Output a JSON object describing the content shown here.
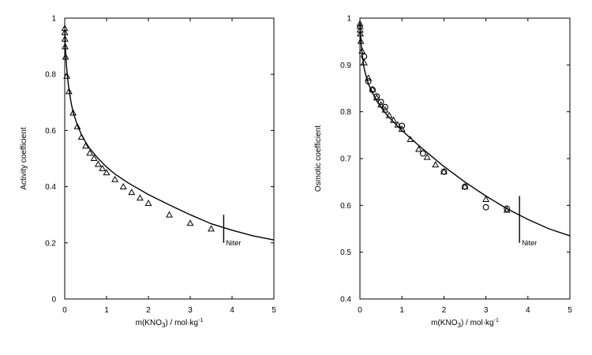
{
  "chart_data": [
    {
      "type": "scatter",
      "title": "",
      "xlabel": {
        "prefix": "m(KNO",
        "sub": "3",
        "suffix": ") / mol·kg",
        "sup": "-1"
      },
      "ylabel": "Activity coefficient",
      "xlim": [
        0,
        5
      ],
      "ylim": [
        0,
        1
      ],
      "xticks": [
        0,
        1,
        2,
        3,
        4,
        5
      ],
      "yticks": [
        0,
        0.2,
        0.4,
        0.6,
        0.8,
        1
      ],
      "xtick_labels": [
        "0",
        "1",
        "2",
        "3",
        "4",
        "5"
      ],
      "ytick_labels": [
        "0",
        "0.2",
        "0.4",
        "0.6",
        "0.8",
        "1"
      ],
      "series": [
        {
          "marker": "triangle",
          "x": [
            0.001,
            0.002,
            0.005,
            0.01,
            0.02,
            0.05,
            0.1,
            0.2,
            0.3,
            0.4,
            0.5,
            0.6,
            0.7,
            0.8,
            0.9,
            1.0,
            1.2,
            1.4,
            1.6,
            1.8,
            2.0,
            2.5,
            3.0,
            3.5
          ],
          "y": [
            0.964,
            0.949,
            0.926,
            0.899,
            0.862,
            0.794,
            0.739,
            0.663,
            0.614,
            0.577,
            0.545,
            0.52,
            0.501,
            0.48,
            0.465,
            0.45,
            0.426,
            0.4,
            0.38,
            0.36,
            0.341,
            0.3,
            0.27,
            0.25
          ]
        },
        {
          "type": "line",
          "x": [
            0.003,
            0.01,
            0.02,
            0.04,
            0.06,
            0.08,
            0.1,
            0.15,
            0.2,
            0.3,
            0.4,
            0.5,
            0.6,
            0.8,
            1.0,
            1.2,
            1.5,
            2.0,
            2.5,
            3.0,
            3.5,
            4.0,
            4.5,
            5.0
          ],
          "y": [
            0.96,
            0.92,
            0.88,
            0.835,
            0.8,
            0.772,
            0.75,
            0.7,
            0.665,
            0.62,
            0.585,
            0.558,
            0.535,
            0.5,
            0.47,
            0.445,
            0.415,
            0.372,
            0.335,
            0.3,
            0.268,
            0.245,
            0.225,
            0.21
          ]
        }
      ],
      "annotations": [
        {
          "text": "Niter",
          "x": 3.8,
          "y_range": [
            0.2,
            0.3
          ]
        }
      ]
    },
    {
      "type": "scatter",
      "title": "",
      "xlabel": {
        "prefix": "m(KNO",
        "sub": "3",
        "suffix": ") / mol·kg",
        "sup": "-1"
      },
      "ylabel": "Osmotic coefficient",
      "xlim": [
        0,
        5
      ],
      "ylim": [
        0.4,
        1
      ],
      "xticks": [
        0,
        1,
        2,
        3,
        4,
        5
      ],
      "yticks": [
        0.4,
        0.5,
        0.6,
        0.7,
        0.8,
        0.9,
        1
      ],
      "xtick_labels": [
        "0",
        "1",
        "2",
        "3",
        "4",
        "5"
      ],
      "ytick_labels": [
        "0.4",
        "0.5",
        "0.6",
        "0.7",
        "0.8",
        "0.9",
        "1"
      ],
      "series": [
        {
          "marker": "triangle",
          "x": [
            0.001,
            0.002,
            0.005,
            0.01,
            0.02,
            0.05,
            0.1,
            0.2,
            0.3,
            0.4,
            0.5,
            0.6,
            0.7,
            0.8,
            0.9,
            1.0,
            1.2,
            1.4,
            1.6,
            1.8,
            2.0,
            2.5,
            3.0,
            3.5
          ],
          "y": [
            0.988,
            0.983,
            0.975,
            0.967,
            0.951,
            0.93,
            0.905,
            0.872,
            0.848,
            0.83,
            0.815,
            0.804,
            0.792,
            0.782,
            0.772,
            0.763,
            0.741,
            0.72,
            0.703,
            0.687,
            0.672,
            0.64,
            0.613,
            0.59
          ]
        },
        {
          "marker": "circle",
          "x": [
            0.1,
            0.2,
            0.3,
            0.4,
            0.5,
            0.6,
            1.0,
            1.5,
            2.0,
            2.5,
            3.0,
            3.5
          ],
          "y": [
            0.918,
            0.865,
            0.847,
            0.833,
            0.821,
            0.81,
            0.77,
            0.711,
            0.672,
            0.64,
            0.596,
            0.593
          ]
        },
        {
          "type": "line",
          "x": [
            0.003,
            0.01,
            0.02,
            0.04,
            0.06,
            0.08,
            0.1,
            0.15,
            0.2,
            0.3,
            0.4,
            0.5,
            0.6,
            0.8,
            1.0,
            1.2,
            1.5,
            2.0,
            2.5,
            3.0,
            3.5,
            4.0,
            4.5,
            5.0
          ],
          "y": [
            0.985,
            0.97,
            0.955,
            0.935,
            0.918,
            0.905,
            0.893,
            0.875,
            0.86,
            0.84,
            0.823,
            0.81,
            0.798,
            0.778,
            0.76,
            0.744,
            0.72,
            0.683,
            0.65,
            0.62,
            0.593,
            0.57,
            0.55,
            0.535
          ]
        }
      ],
      "annotations": [
        {
          "text": "Niter",
          "x": 3.8,
          "y_range": [
            0.52,
            0.62
          ]
        }
      ]
    }
  ]
}
